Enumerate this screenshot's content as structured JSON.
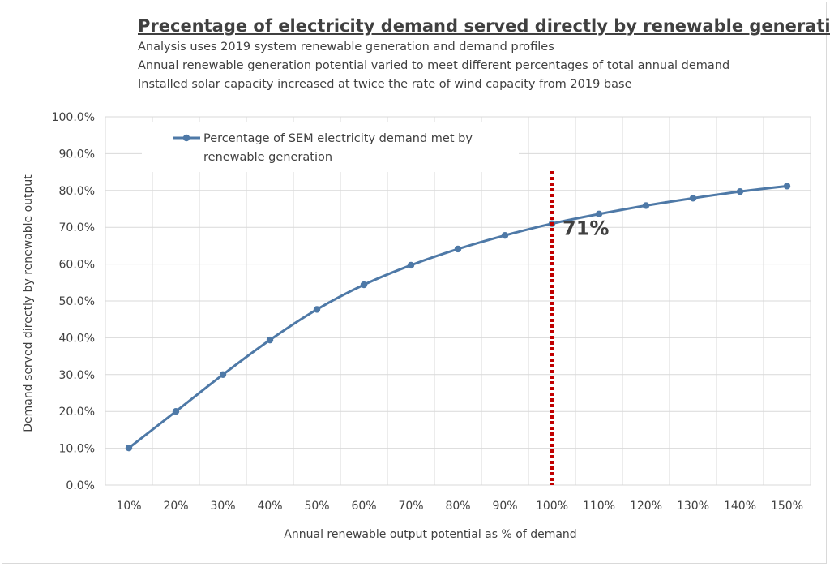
{
  "chart_data": {
    "type": "line",
    "title": "Precentage of electricity demand served directly by renewable generation",
    "subtitles": [
      "Analysis uses 2019 system renewable generation and demand profiles",
      "Annual renewable generation potential varied to meet different percentages of total annual demand",
      "Installed solar capacity increased at twice the rate of wind capacity from 2019 base"
    ],
    "xlabel": "Annual renewable output potential as % of demand",
    "ylabel": "Demand served directly by renewable output",
    "categories": [
      "10%",
      "20%",
      "30%",
      "40%",
      "50%",
      "60%",
      "70%",
      "80%",
      "90%",
      "100%",
      "110%",
      "120%",
      "130%",
      "140%",
      "150%"
    ],
    "ylim": [
      0,
      100
    ],
    "y_ticks": [
      "0.0%",
      "10.0%",
      "20.0%",
      "30.0%",
      "40.0%",
      "50.0%",
      "60.0%",
      "70.0%",
      "80.0%",
      "90.0%",
      "100.0%"
    ],
    "series": [
      {
        "name": "Percentage of SEM electricity demand met by renewable generation",
        "color": "#4e79a7",
        "values": [
          10.1,
          20.0,
          30.0,
          39.4,
          47.7,
          54.4,
          59.7,
          64.1,
          67.8,
          71.0,
          73.6,
          75.9,
          77.9,
          79.7,
          81.2
        ]
      }
    ],
    "legend_lines": [
      "Percentage of SEM electricity demand met by",
      "renewable generation"
    ],
    "marker_line": {
      "category": "100%",
      "color": "#c00000",
      "style": "dotted"
    },
    "annotation": {
      "text": "71%",
      "category": "100%"
    },
    "grid": true,
    "legend_position": "top-left"
  }
}
